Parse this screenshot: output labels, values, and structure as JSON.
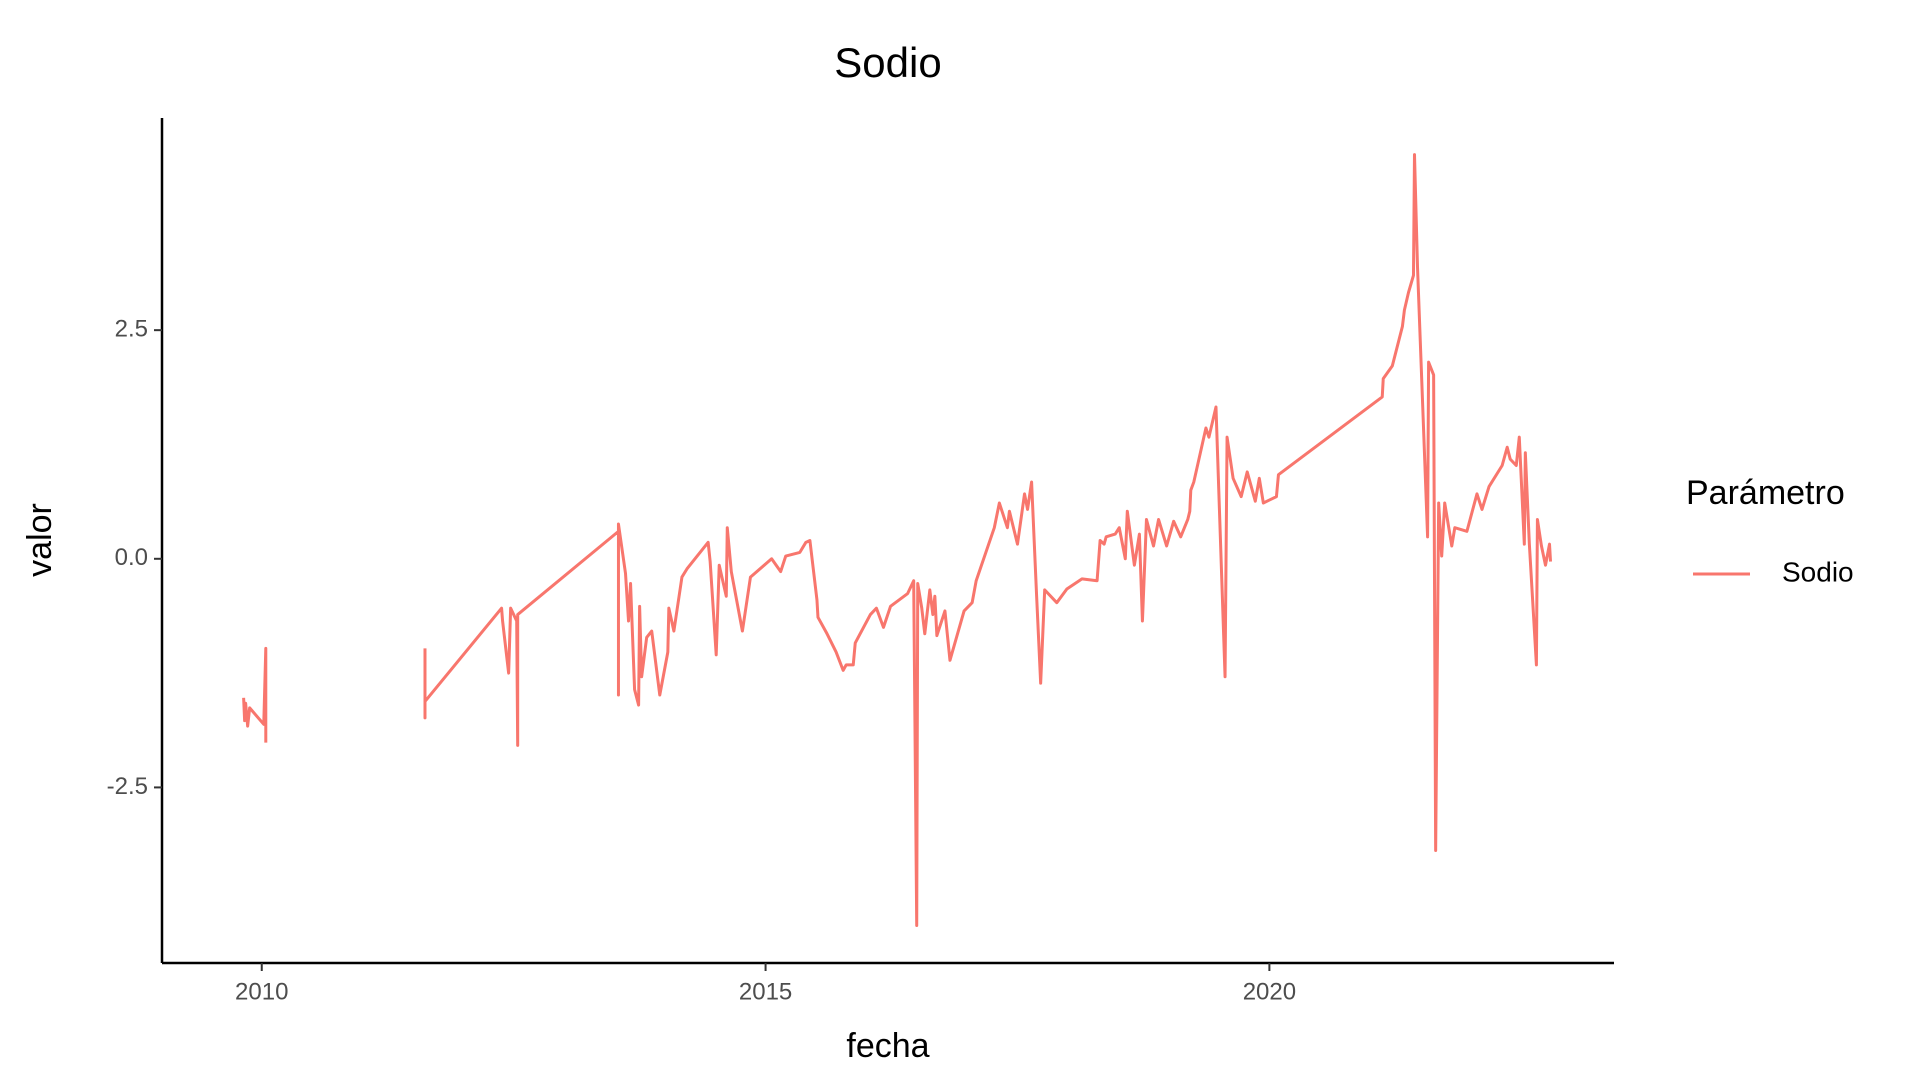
{
  "chart_data": {
    "type": "line",
    "title": "Sodio",
    "x_label": "fecha",
    "y_label": "valor",
    "legend_title": "Parámetro",
    "x": [
      2009.82,
      2009.83,
      2009.84,
      2009.86,
      2009.88,
      2010.02,
      2010.04,
      2010.04,
      null,
      2011.62,
      2011.62,
      2011.62,
      2012.38,
      2012.39,
      2012.45,
      2012.47,
      2012.53,
      2012.54,
      2012.54,
      2013.54,
      2013.54,
      2013.54,
      2013.61,
      2013.64,
      2013.66,
      2013.7,
      2013.74,
      2013.75,
      2013.77,
      2013.82,
      2013.87,
      2013.95,
      2014.03,
      2014.04,
      2014.09,
      2014.17,
      2014.22,
      2014.43,
      2014.45,
      2014.51,
      2014.54,
      2014.61,
      2014.62,
      2014.66,
      2014.77,
      2014.85,
      2015.06,
      2015.15,
      2015.2,
      2015.34,
      2015.4,
      2015.44,
      2015.51,
      2015.52,
      2015.61,
      2015.7,
      2015.77,
      2015.8,
      2015.87,
      2015.89,
      2016.04,
      2016.1,
      2016.17,
      2016.24,
      2016.41,
      2016.47,
      2016.5,
      2016.51,
      2016.55,
      2016.58,
      2016.63,
      2016.66,
      2016.68,
      2016.7,
      2016.78,
      2016.83,
      2016.97,
      2017.05,
      2017.09,
      2017.27,
      2017.32,
      2017.4,
      2017.42,
      2017.5,
      2017.57,
      2017.6,
      2017.64,
      2017.69,
      2017.73,
      2017.77,
      2017.89,
      2017.99,
      2018.14,
      2018.29,
      2018.32,
      2018.36,
      2018.38,
      2018.47,
      2018.51,
      2018.57,
      2018.59,
      2018.66,
      2018.71,
      2018.74,
      2018.78,
      2018.85,
      2018.9,
      2018.98,
      2019.05,
      2019.12,
      2019.19,
      2019.21,
      2019.22,
      2019.25,
      2019.37,
      2019.4,
      2019.47,
      2019.56,
      2019.58,
      2019.64,
      2019.72,
      2019.78,
      2019.86,
      2019.9,
      2019.94,
      2020.07,
      2020.09,
      2021.12,
      2021.13,
      2021.22,
      2021.32,
      2021.34,
      2021.38,
      2021.43,
      2021.44,
      2021.47,
      2021.57,
      2021.58,
      2021.63,
      2021.65,
      2021.68,
      2021.71,
      2021.74,
      2021.81,
      2021.84,
      2021.96,
      2022.06,
      2022.11,
      2022.18,
      2022.31,
      2022.36,
      2022.39,
      2022.45,
      2022.48,
      2022.53,
      2022.54,
      2022.58,
      2022.65,
      2022.66,
      2022.7,
      2022.74,
      2022.78,
      2022.79
    ],
    "series": [
      {
        "name": "Sodio",
        "color": "#f8766d",
        "values": [
          -1.52,
          -1.77,
          -1.58,
          -1.83,
          -1.63,
          -1.81,
          -0.98,
          -2.01,
          null,
          -0.98,
          -1.74,
          -1.56,
          -0.54,
          -0.68,
          -1.25,
          -0.54,
          -0.68,
          -2.04,
          -0.61,
          0.3,
          -1.49,
          0.38,
          -0.16,
          -0.68,
          -0.27,
          -1.43,
          -1.6,
          -0.52,
          -1.29,
          -0.86,
          -0.79,
          -1.49,
          -1.02,
          -0.54,
          -0.79,
          -0.2,
          -0.11,
          0.18,
          -0.03,
          -1.05,
          -0.07,
          -0.41,
          0.34,
          -0.14,
          -0.79,
          -0.2,
          0,
          -0.14,
          0.03,
          0.07,
          0.18,
          0.2,
          -0.45,
          -0.64,
          -0.82,
          -1.02,
          -1.22,
          -1.16,
          -1.16,
          -0.92,
          -0.61,
          -0.54,
          -0.75,
          -0.52,
          -0.38,
          -0.24,
          -4.01,
          -0.27,
          -0.54,
          -0.82,
          -0.34,
          -0.61,
          -0.41,
          -0.84,
          -0.57,
          -1.11,
          -0.57,
          -0.48,
          -0.24,
          0.34,
          0.61,
          0.34,
          0.52,
          0.16,
          0.71,
          0.54,
          0.84,
          -0.41,
          -1.36,
          -0.34,
          -0.48,
          -0.33,
          -0.22,
          -0.24,
          0.2,
          0.16,
          0.24,
          0.27,
          0.34,
          0,
          0.52,
          -0.07,
          0.27,
          -0.68,
          0.43,
          0.14,
          0.43,
          0.14,
          0.41,
          0.24,
          0.43,
          0.52,
          0.75,
          0.84,
          1.43,
          1.33,
          1.66,
          -1.29,
          1.33,
          0.88,
          0.68,
          0.95,
          0.63,
          0.88,
          0.61,
          0.68,
          0.92,
          1.77,
          1.97,
          2.11,
          2.54,
          2.72,
          2.91,
          3.1,
          4.42,
          3.19,
          0.24,
          2.15,
          2.01,
          -3.19,
          0.61,
          0.03,
          0.61,
          0.14,
          0.34,
          0.3,
          0.71,
          0.54,
          0.79,
          1.02,
          1.22,
          1.09,
          1.02,
          1.33,
          0.16,
          1.16,
          0.16,
          -1.16,
          0.43,
          0.14,
          -0.07,
          0.16,
          -0.03
        ]
      }
    ],
    "xlim": [
      2009.01,
      2023.42
    ],
    "ylim": [
      -4.42,
      4.82
    ],
    "xticks": [
      2010,
      2015,
      2020
    ],
    "yticks": [
      -2.5,
      {
        "value": 0,
        "label": "0.0"
      },
      2.5
    ],
    "grid": false,
    "legend": "right"
  }
}
